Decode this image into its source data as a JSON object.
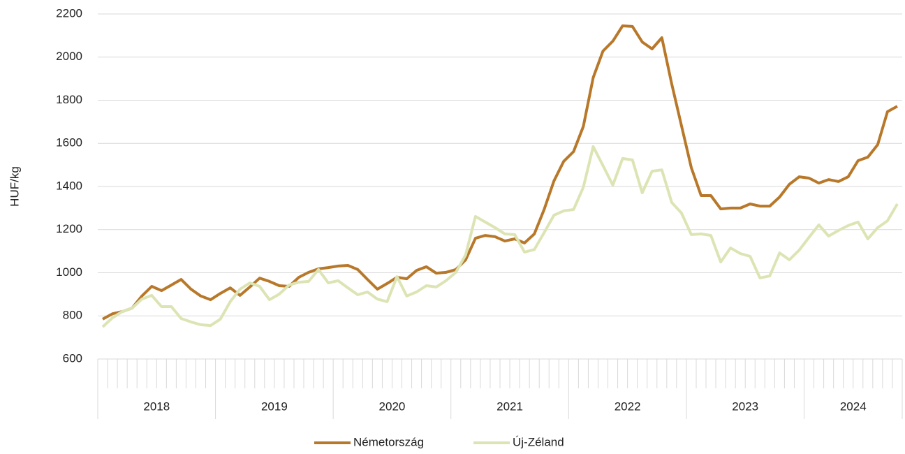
{
  "chart_data": {
    "type": "line",
    "y_label": "HUF/kg",
    "year_groups": [
      {
        "label": "2018",
        "months": 12
      },
      {
        "label": "2019",
        "months": 12
      },
      {
        "label": "2020",
        "months": 12
      },
      {
        "label": "2021",
        "months": 12
      },
      {
        "label": "2022",
        "months": 12
      },
      {
        "label": "2023",
        "months": 12
      },
      {
        "label": "2024",
        "months": 10
      }
    ],
    "ylim": [
      600,
      2200
    ],
    "yticks": [
      600,
      800,
      1000,
      1200,
      1400,
      1600,
      1800,
      2000,
      2200
    ],
    "grid": true,
    "legend": "bottom",
    "series": [
      {
        "name": "Németország",
        "color": "#b8782a",
        "values": [
          785,
          810,
          820,
          836,
          892,
          937,
          917,
          943,
          969,
          924,
          892,
          875,
          904,
          930,
          895,
          934,
          975,
          960,
          940,
          937,
          979,
          1002,
          1018,
          1024,
          1031,
          1034,
          1015,
          969,
          924,
          950,
          979,
          972,
          1011,
          1028,
          998,
          1002,
          1015,
          1060,
          1160,
          1173,
          1167,
          1147,
          1157,
          1138,
          1180,
          1293,
          1426,
          1517,
          1562,
          1679,
          1905,
          2028,
          2074,
          2145,
          2142,
          2070,
          2038,
          2090,
          1876,
          1682,
          1487,
          1358,
          1358,
          1296,
          1300,
          1300,
          1319,
          1309,
          1309,
          1351,
          1410,
          1445,
          1439,
          1416,
          1432,
          1423,
          1445,
          1520,
          1536,
          1594,
          1747,
          1772
        ]
      },
      {
        "name": "Új-Zéland",
        "color": "#dde4b4",
        "values": [
          749,
          791,
          820,
          836,
          878,
          895,
          843,
          843,
          788,
          772,
          759,
          755,
          785,
          866,
          924,
          953,
          937,
          875,
          901,
          943,
          956,
          960,
          1015,
          953,
          963,
          930,
          898,
          911,
          878,
          866,
          982,
          892,
          911,
          940,
          934,
          963,
          1002,
          1083,
          1261,
          1235,
          1209,
          1180,
          1177,
          1096,
          1108,
          1186,
          1267,
          1287,
          1293,
          1397,
          1585,
          1497,
          1406,
          1530,
          1523,
          1371,
          1471,
          1477,
          1326,
          1277,
          1177,
          1180,
          1173,
          1050,
          1115,
          1089,
          1076,
          976,
          985,
          1092,
          1060,
          1105,
          1164,
          1222,
          1170,
          1196,
          1219,
          1235,
          1157,
          1209,
          1241,
          1319
        ]
      }
    ]
  }
}
